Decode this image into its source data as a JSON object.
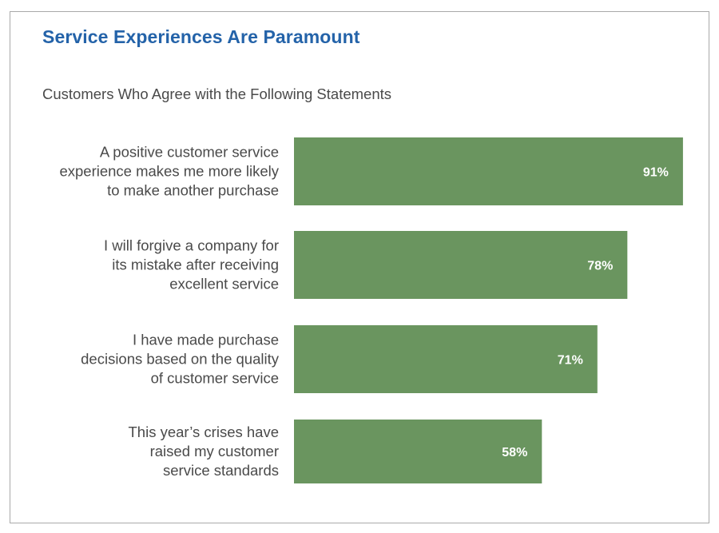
{
  "chart_data": {
    "type": "bar",
    "orientation": "horizontal",
    "title": "Service Experiences Are Paramount",
    "subtitle": "Customers Who Agree with the Following Statements",
    "categories": [
      [
        "A positive customer service",
        "experience makes me more likely",
        "to make another purchase"
      ],
      [
        "I will forgive a company for",
        "its mistake after receiving",
        "excellent service"
      ],
      [
        "I have made purchase",
        "decisions based on the quality",
        "of customer service"
      ],
      [
        "This year’s crises have",
        "raised my customer",
        "service standards"
      ]
    ],
    "values": [
      91,
      78,
      71,
      58
    ],
    "value_labels": [
      "91%",
      "78%",
      "71%",
      "58%"
    ],
    "xlim": [
      0,
      100
    ],
    "bar_color": "#6a955f",
    "value_label_color": "#ffffff",
    "grid": false,
    "legend": "none"
  }
}
